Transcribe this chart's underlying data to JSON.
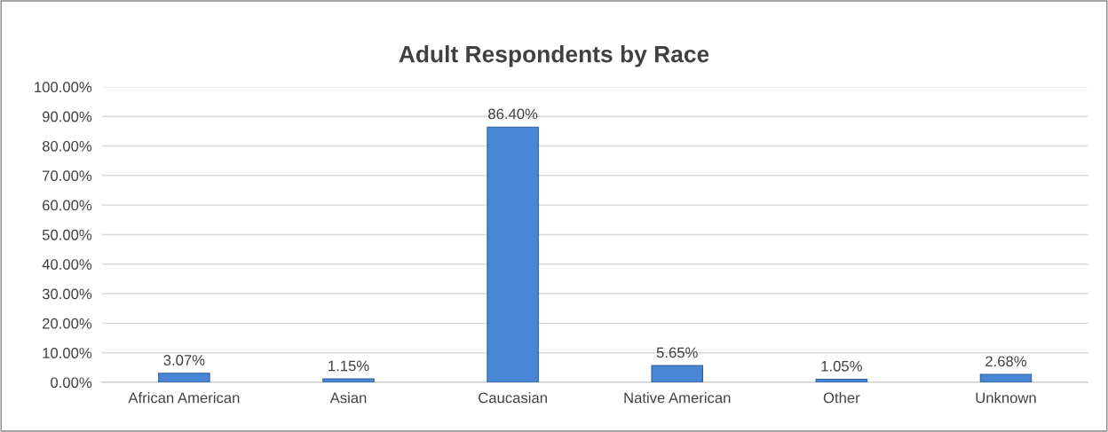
{
  "chart_data": {
    "type": "bar",
    "title": "Adult Respondents by Race",
    "categories": [
      "African American",
      "Asian",
      "Caucasian",
      "Native American",
      "Other",
      "Unknown"
    ],
    "values": [
      3.07,
      1.15,
      86.4,
      5.65,
      1.05,
      2.68
    ],
    "value_labels": [
      "3.07%",
      "1.15%",
      "86.40%",
      "5.65%",
      "1.05%",
      "2.68%"
    ],
    "color": "#4a86d6",
    "ylim": [
      0,
      100
    ],
    "yticks": [
      {
        "value": 0,
        "label": "0.00%"
      },
      {
        "value": 10,
        "label": "10.00%"
      },
      {
        "value": 20,
        "label": "20.00%"
      },
      {
        "value": 30,
        "label": "30.00%"
      },
      {
        "value": 40,
        "label": "40.00%"
      },
      {
        "value": 50,
        "label": "50.00%"
      },
      {
        "value": 60,
        "label": "60.00%"
      },
      {
        "value": 70,
        "label": "70.00%"
      },
      {
        "value": 80,
        "label": "80.00%"
      },
      {
        "value": 90,
        "label": "90.00%"
      },
      {
        "value": 100,
        "label": "100.00%"
      }
    ],
    "grid": "y",
    "legend": false
  }
}
